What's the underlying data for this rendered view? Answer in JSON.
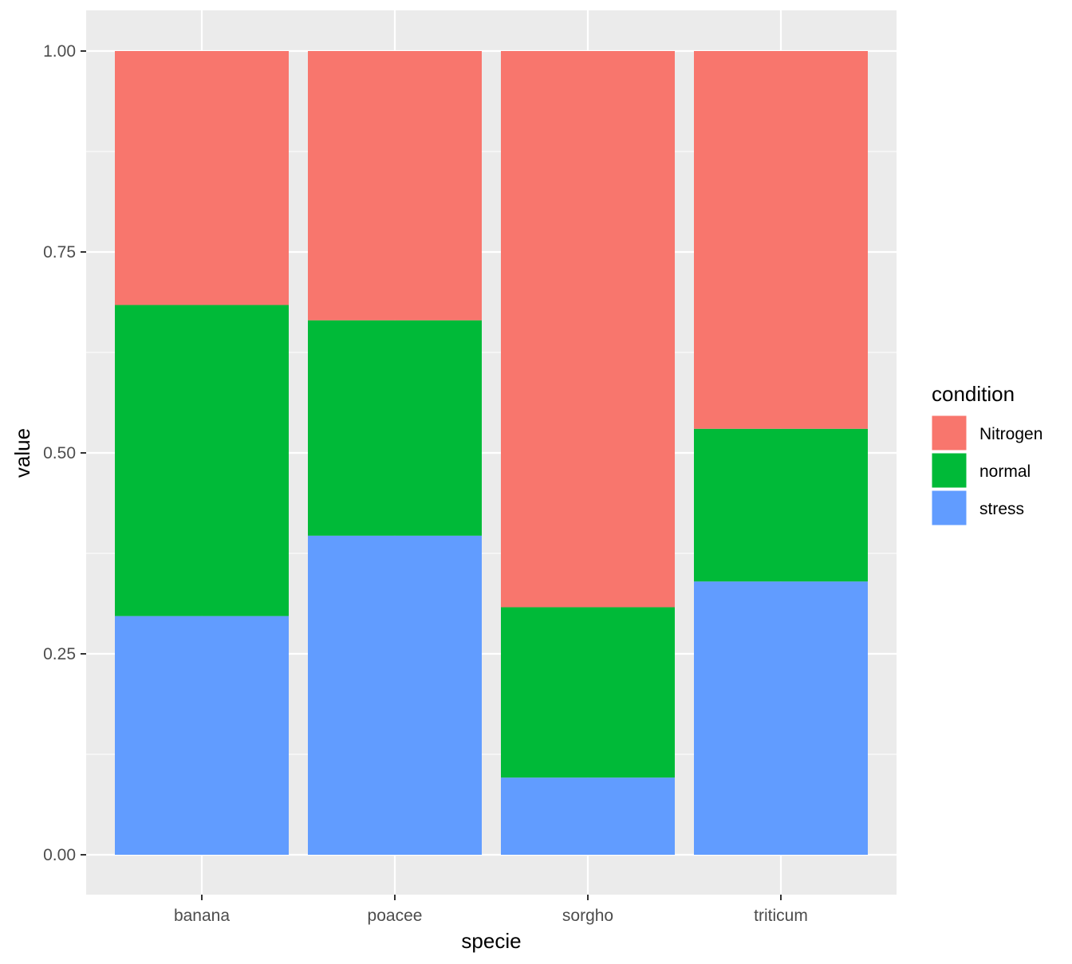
{
  "chart_data": {
    "type": "bar",
    "stacked": true,
    "position": "fill",
    "title": "",
    "xlabel": "specie",
    "ylabel": "value",
    "ylim": [
      0,
      1
    ],
    "y_ticks": [
      0.0,
      0.25,
      0.5,
      0.75,
      1.0
    ],
    "y_tick_labels": [
      "0.00",
      "0.25",
      "0.50",
      "0.75",
      "1.00"
    ],
    "grid": true,
    "panel_background": "#ebebeb",
    "grid_color": "#ffffff",
    "categories": [
      "banana",
      "poacee",
      "sorgho",
      "triticum"
    ],
    "series": [
      {
        "name": "Nitrogen",
        "color": "#F8766D",
        "values": [
          0.316,
          0.335,
          0.692,
          0.47
        ]
      },
      {
        "name": "normal",
        "color": "#00BA38",
        "values": [
          0.387,
          0.268,
          0.212,
          0.19
        ]
      },
      {
        "name": "stress",
        "color": "#619CFF",
        "values": [
          0.297,
          0.397,
          0.096,
          0.34
        ]
      }
    ],
    "stack_order_bottom_to_top": [
      "stress",
      "normal",
      "Nitrogen"
    ],
    "legend": {
      "title": "condition",
      "position": "right"
    }
  }
}
